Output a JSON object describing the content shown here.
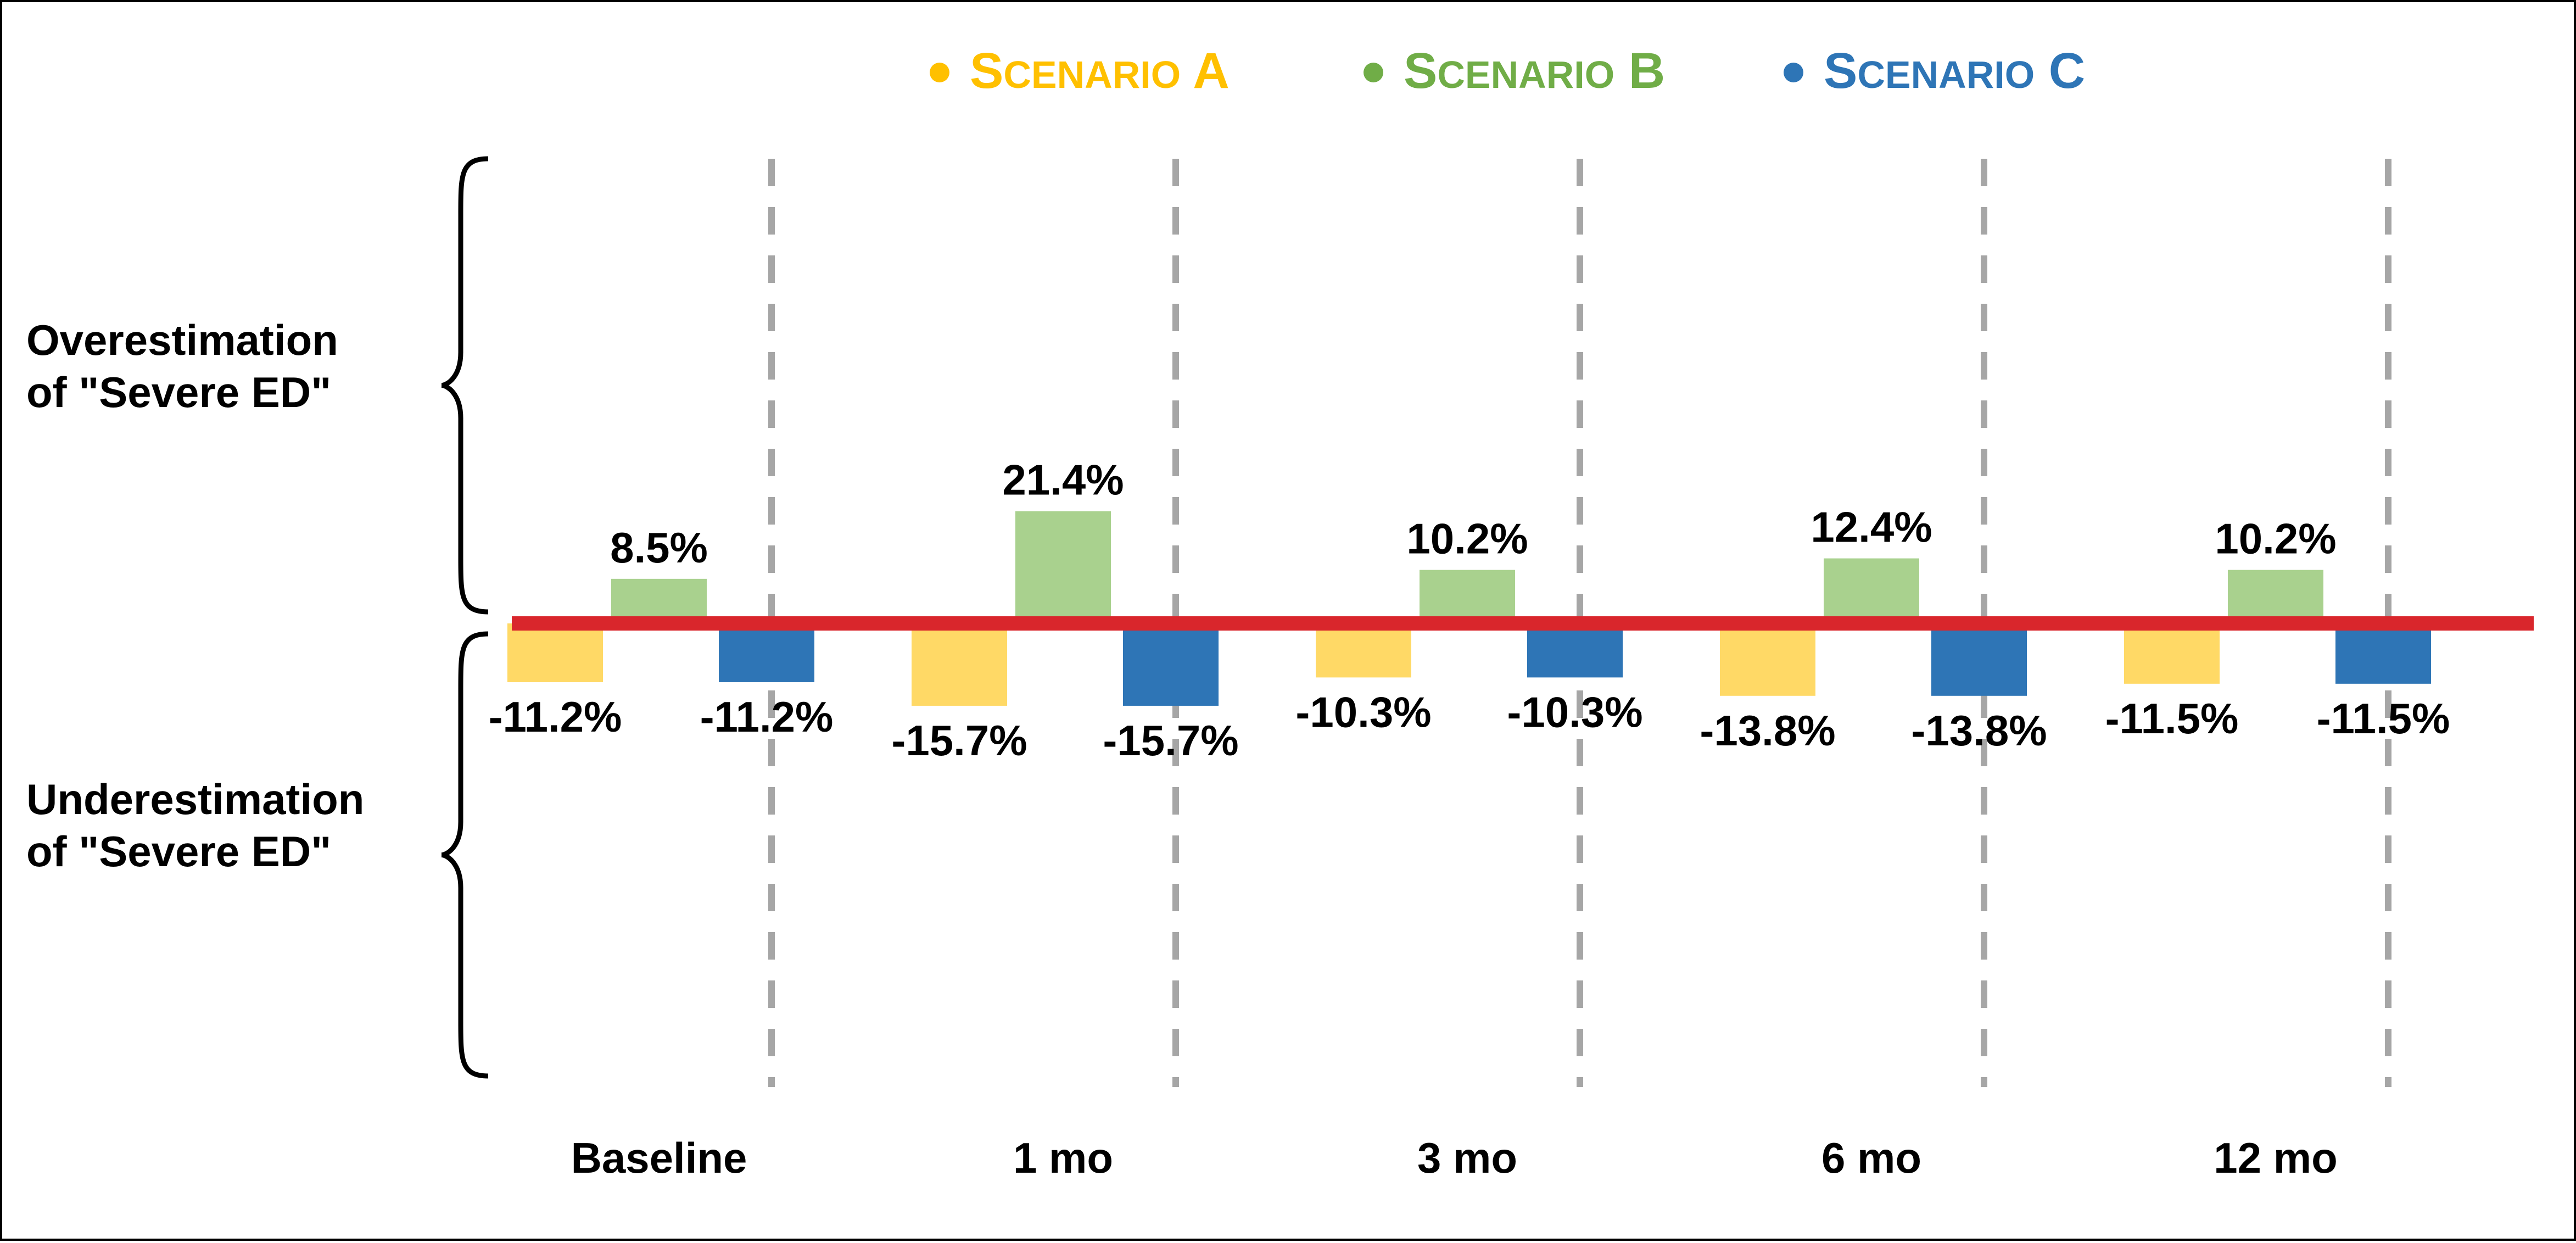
{
  "chart_data": {
    "type": "bar",
    "categories": [
      "Baseline",
      "1 mo",
      "3 mo",
      "6 mo",
      "12 mo"
    ],
    "series": [
      {
        "name": "Scenario A",
        "legend_small": "cenario",
        "legend_cap": "S",
        "legend_suffix": " A",
        "color": "#FFD966",
        "legend_color": "#FFC000",
        "values": [
          -11.2,
          -15.7,
          -10.3,
          -13.8,
          -11.5
        ],
        "labels": [
          "-11.2%",
          "-15.7%",
          "-10.3%",
          "-13.8%",
          "-11.5%"
        ]
      },
      {
        "name": "Scenario B",
        "legend_small": "cenario",
        "legend_cap": "S",
        "legend_suffix": " B",
        "color": "#A9D18E",
        "legend_color": "#70AD47",
        "values": [
          8.5,
          21.4,
          10.2,
          12.4,
          10.2
        ],
        "labels": [
          "8.5%",
          "21.4%",
          "10.2%",
          "12.4%",
          "10.2%"
        ]
      },
      {
        "name": "Scenario C",
        "legend_small": "cenario",
        "legend_cap": "S",
        "legend_suffix": " C",
        "color": "#2E75B6",
        "legend_color": "#2E75B6",
        "values": [
          -11.2,
          -15.7,
          -10.3,
          -13.8,
          -11.5
        ],
        "labels": [
          "-11.2%",
          "-15.7%",
          "-10.3%",
          "-13.8%",
          "-11.5%"
        ]
      }
    ],
    "side_labels": {
      "over": [
        "Overestimation",
        "of \"Severe ED\""
      ],
      "under": [
        "Underestimation",
        "of \"Severe ED\""
      ]
    },
    "zero_line_color": "#D9262C",
    "divider_color": "#A6A6A6",
    "legend_position": "top-center",
    "grid": false
  }
}
